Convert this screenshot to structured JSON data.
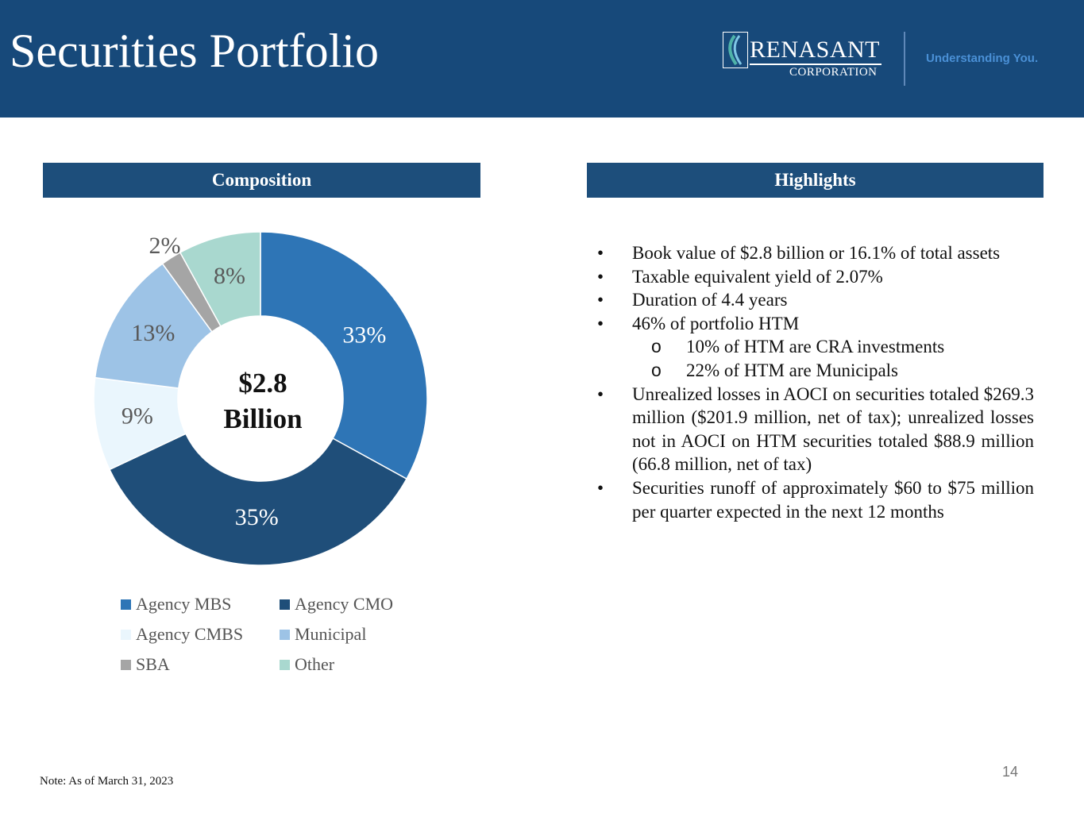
{
  "header": {
    "title": "Securities Portfolio",
    "logo_name": "RENASANT",
    "logo_sub": "CORPORATION",
    "tagline": "Understanding You."
  },
  "composition": {
    "header": "Composition",
    "center_line1": "$2.8",
    "center_line2": "Billion"
  },
  "chart_data": {
    "type": "pie",
    "title": "Composition",
    "center_text": "$2.8 Billion",
    "categories": [
      "Agency MBS",
      "Agency CMO",
      "Agency CMBS",
      "Municipal",
      "SBA",
      "Other"
    ],
    "values": [
      33,
      35,
      9,
      13,
      2,
      8
    ],
    "labels": [
      "33%",
      "35%",
      "9%",
      "13%",
      "2%",
      "8%"
    ],
    "colors": [
      "#2e75b6",
      "#1f4e79",
      "#eaf6fd",
      "#9dc3e6",
      "#a5a5a5",
      "#a9d8cf"
    ],
    "legend_position": "bottom"
  },
  "highlights": {
    "header": "Highlights",
    "bullet_char": "•",
    "sub_bullet_char": "o",
    "items": [
      "Book value of $2.8 billion or 16.1% of total assets",
      "Taxable equivalent yield of 2.07%",
      "Duration of 4.4 years",
      "46% of portfolio HTM",
      "Unrealized losses in AOCI on securities totaled $269.3 million ($201.9 million, net of tax); unrealized losses not in AOCI on HTM securities totaled $88.9 million (66.8 million, net of tax)",
      "Securities runoff of approximately $60 to $75 million per quarter expected in the next 12 months"
    ],
    "sub_items": [
      "10% of HTM are CRA investments",
      "22% of HTM are Municipals"
    ]
  },
  "footer": {
    "note": "Note:  As of March 31, 2023",
    "page_number": "14"
  }
}
